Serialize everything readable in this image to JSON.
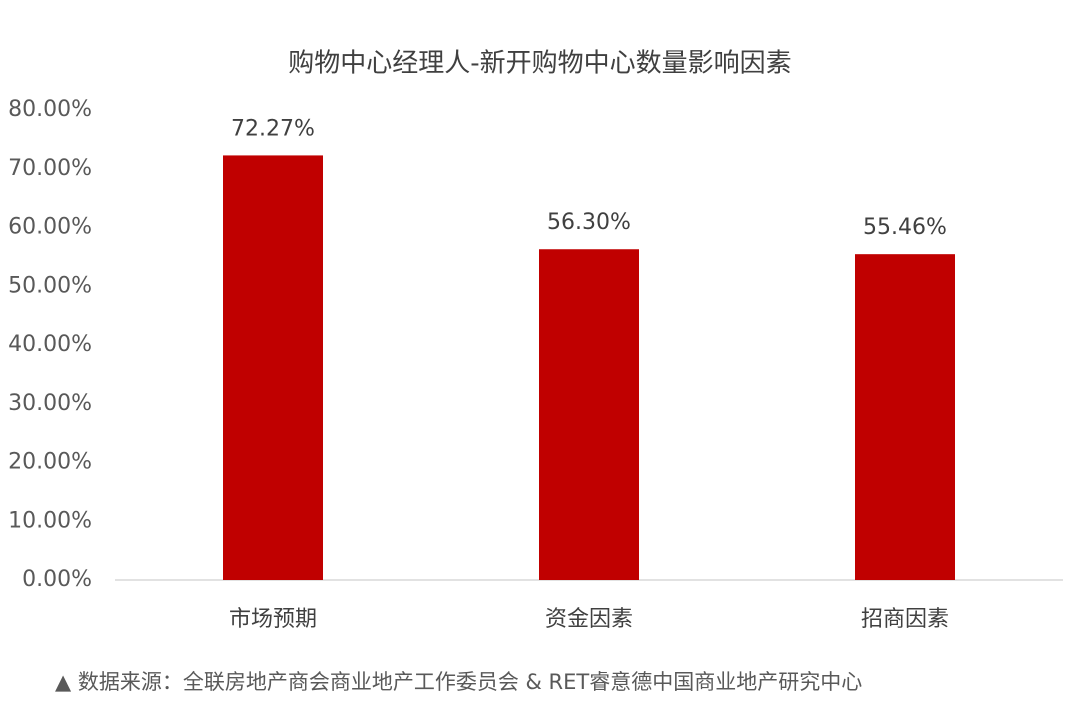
{
  "chart_data": {
    "type": "bar",
    "title": "购物中心经理人-新开购物中心数量影响因素",
    "categories": [
      "市场预期",
      "资金因素",
      "招商因素"
    ],
    "values": [
      72.27,
      56.3,
      55.46
    ],
    "value_labels": [
      "72.27%",
      "56.30%",
      "55.46%"
    ],
    "color": "#c00000",
    "ylim": [
      0,
      80
    ],
    "yticks": [
      {
        "value": 0,
        "label": "0.00%"
      },
      {
        "value": 10,
        "label": "10.00%"
      },
      {
        "value": 20,
        "label": "20.00%"
      },
      {
        "value": 30,
        "label": "30.00%"
      },
      {
        "value": 40,
        "label": "40.00%"
      },
      {
        "value": 50,
        "label": "50.00%"
      },
      {
        "value": 60,
        "label": "60.00%"
      },
      {
        "value": 70,
        "label": "70.00%"
      },
      {
        "value": 80,
        "label": "80.00%"
      }
    ],
    "grid": false,
    "source": "▲ 数据来源：全联房地产商会商业地产工作委员会 & RET睿意德中国商业地产研究中心"
  }
}
